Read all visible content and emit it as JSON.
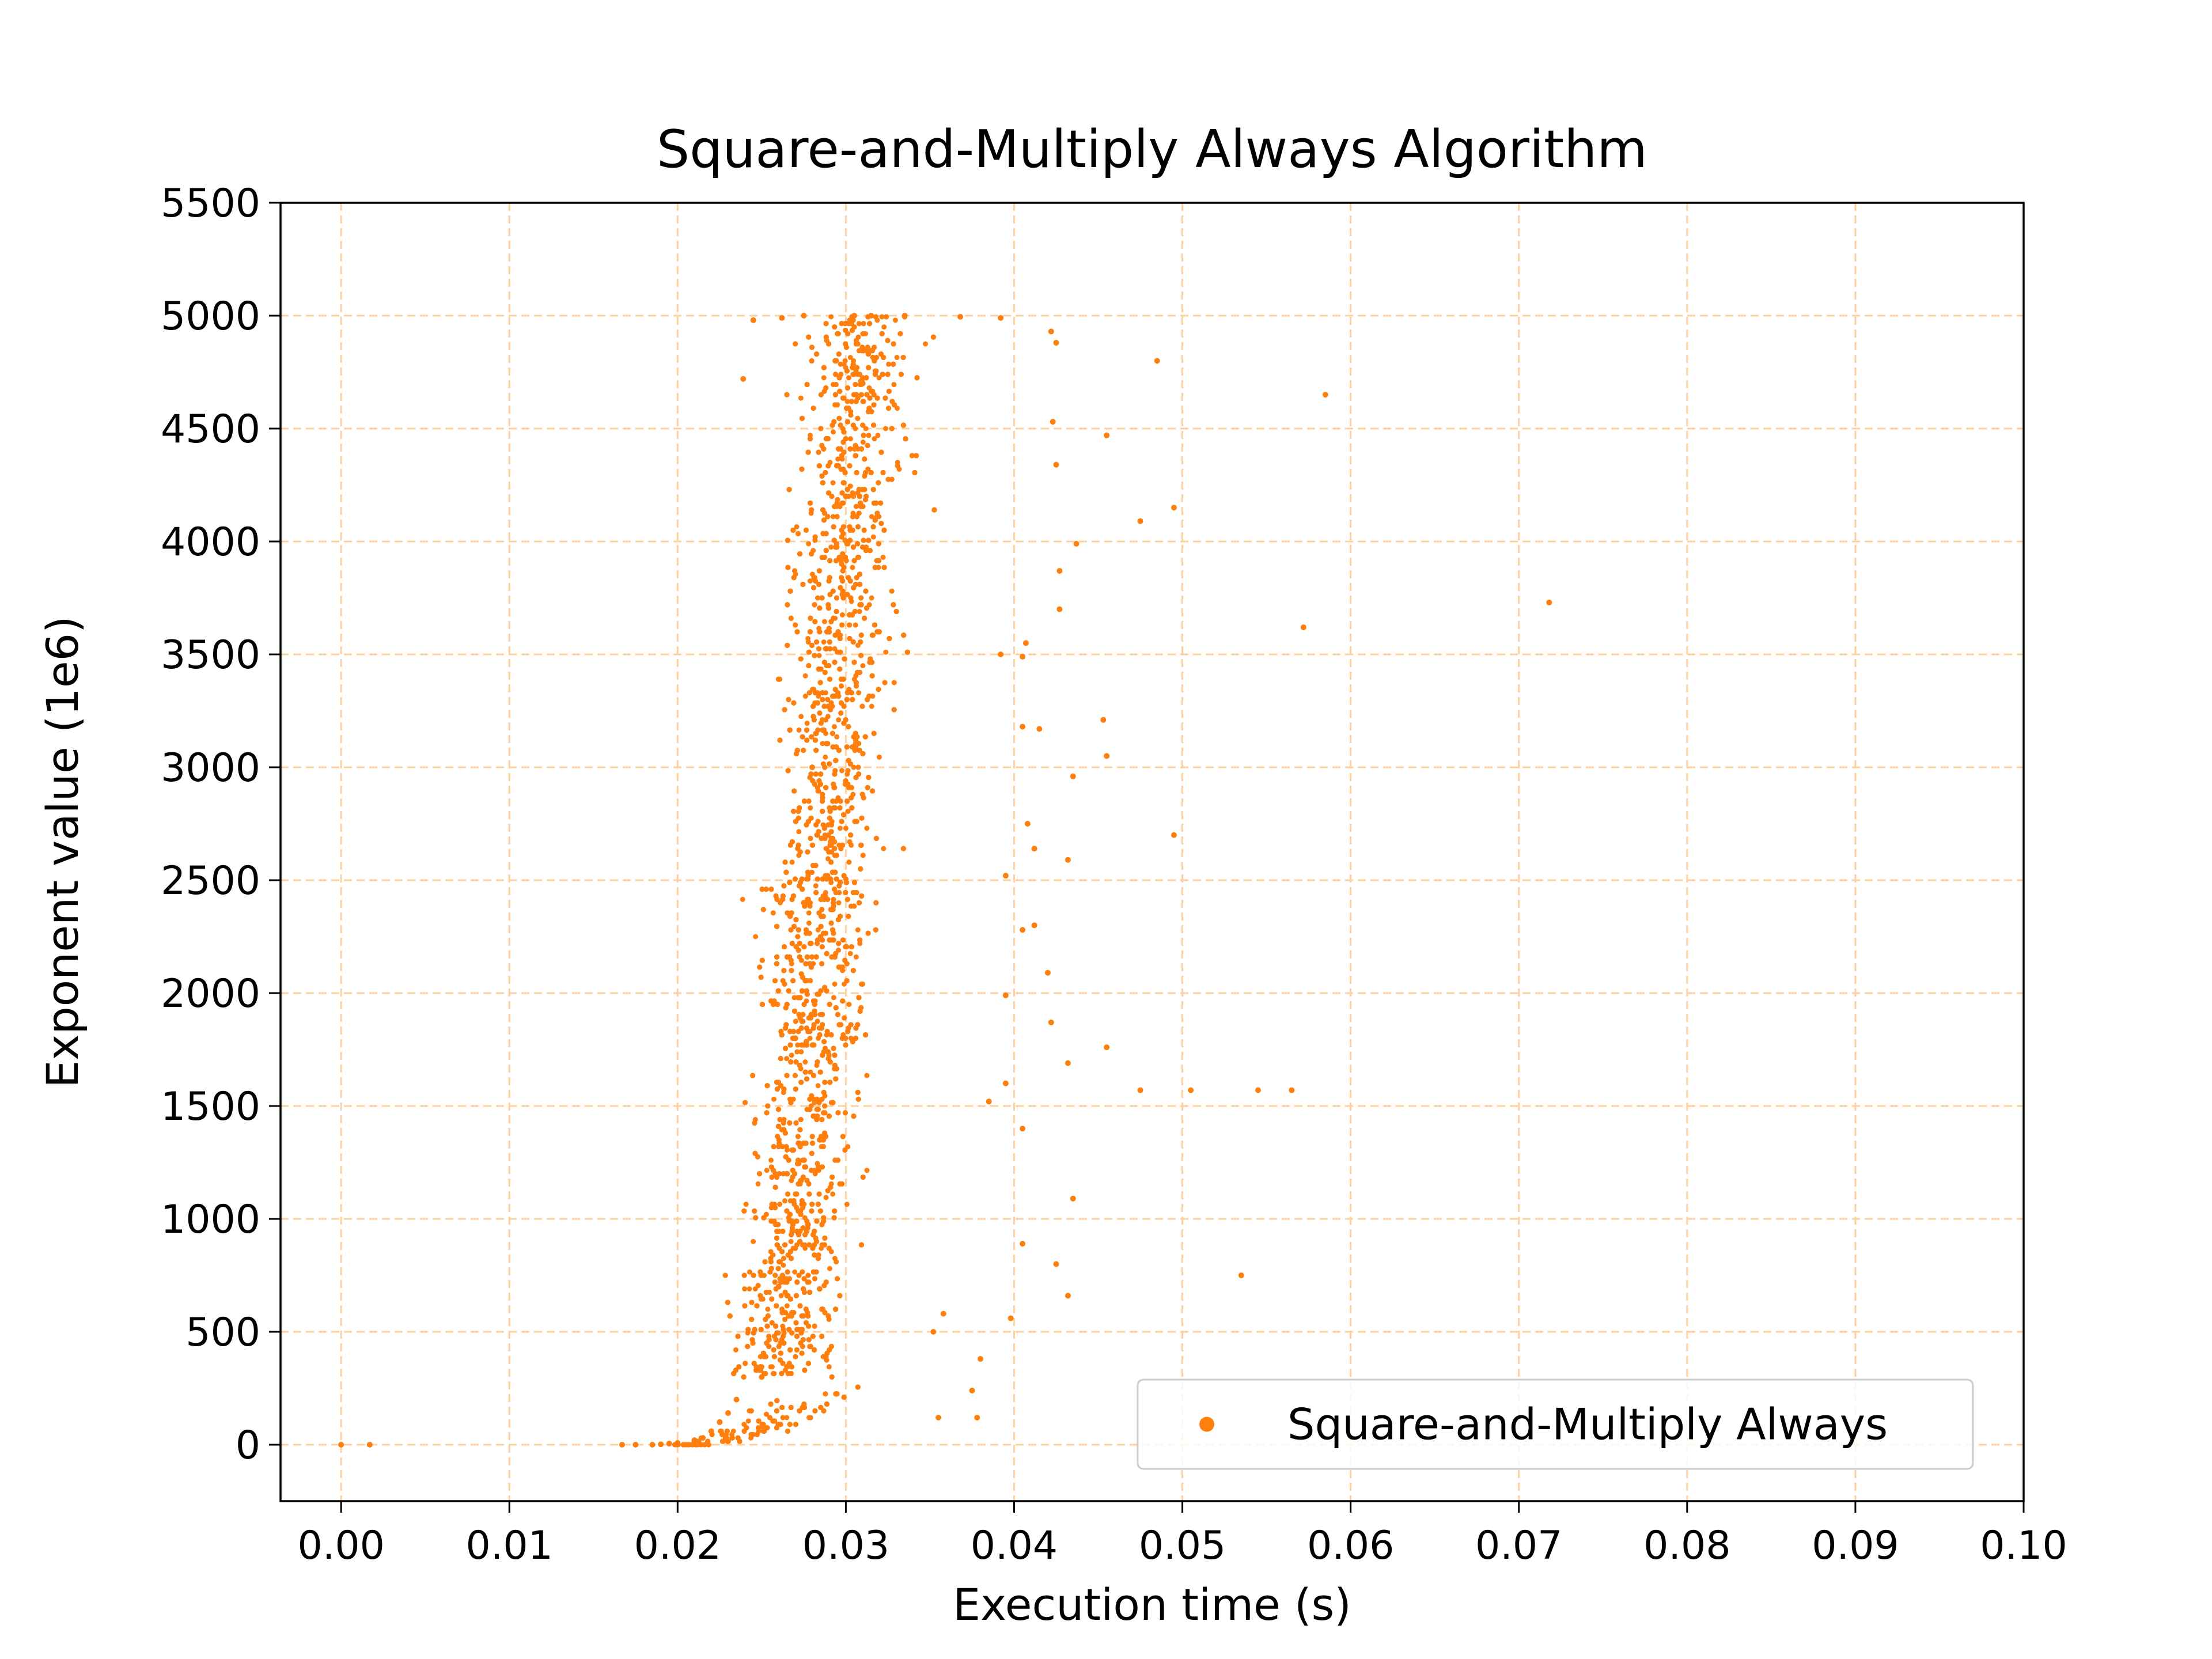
{
  "chart_data": {
    "type": "scatter",
    "title": "Square-and-Multiply Always Algorithm",
    "xlabel": "Execution time (s)",
    "ylabel": "Exponent value (1e6)",
    "xlim": [
      -0.0036,
      0.1
    ],
    "ylim": [
      -250,
      5500
    ],
    "x_ticks": [
      "0.00",
      "0.01",
      "0.02",
      "0.03",
      "0.04",
      "0.05",
      "0.06",
      "0.07",
      "0.08",
      "0.09",
      "0.10"
    ],
    "x_tick_values": [
      0,
      0.01,
      0.02,
      0.03,
      0.04,
      0.05,
      0.06,
      0.07,
      0.08,
      0.09,
      0.1
    ],
    "y_ticks": [
      "0",
      "500",
      "1000",
      "1500",
      "2000",
      "2500",
      "3000",
      "3500",
      "4000",
      "4500",
      "5000",
      "5500"
    ],
    "y_tick_values": [
      0,
      500,
      1000,
      1500,
      2000,
      2500,
      3000,
      3500,
      4000,
      4500,
      5000,
      5500
    ],
    "grid": true,
    "legend_position": "lower-right",
    "series": [
      {
        "name": "Square-and-Multiply Always",
        "color": "#ff7f0e",
        "marker": "point",
        "trend": "execution time rises from about 0.017 s at exponent 0 to about 0.031 s at exponent 5000, with a horizontal spread of roughly ±0.004 s",
        "points": [
          [
            0.0,
            0
          ],
          [
            0.0017,
            0
          ],
          [
            0.0167,
            0
          ],
          [
            0.0175,
            0
          ],
          [
            0.0185,
            0
          ],
          [
            0.019,
            2
          ],
          [
            0.0195,
            5
          ],
          [
            0.02,
            8
          ],
          [
            0.021,
            20
          ],
          [
            0.0215,
            30
          ],
          [
            0.022,
            60
          ],
          [
            0.0225,
            100
          ],
          [
            0.023,
            140
          ],
          [
            0.0235,
            200
          ],
          [
            0.0239,
            4720
          ],
          [
            0.0245,
            4980
          ],
          [
            0.0262,
            4990
          ],
          [
            0.0275,
            5000
          ],
          [
            0.0305,
            5000
          ],
          [
            0.0335,
            5000
          ],
          [
            0.0368,
            4995
          ],
          [
            0.0392,
            4990
          ],
          [
            0.0422,
            4930
          ],
          [
            0.0425,
            4880
          ],
          [
            0.0485,
            4800
          ],
          [
            0.0585,
            4650
          ],
          [
            0.0423,
            4530
          ],
          [
            0.0455,
            4470
          ],
          [
            0.0425,
            4340
          ],
          [
            0.0495,
            4150
          ],
          [
            0.0475,
            4090
          ],
          [
            0.0437,
            3990
          ],
          [
            0.0427,
            3870
          ],
          [
            0.0718,
            3730
          ],
          [
            0.0427,
            3700
          ],
          [
            0.0572,
            3620
          ],
          [
            0.0407,
            3550
          ],
          [
            0.0392,
            3500
          ],
          [
            0.0405,
            3490
          ],
          [
            0.0453,
            3210
          ],
          [
            0.0405,
            3180
          ],
          [
            0.0415,
            3170
          ],
          [
            0.0435,
            2960
          ],
          [
            0.0455,
            3050
          ],
          [
            0.0495,
            2700
          ],
          [
            0.0408,
            2750
          ],
          [
            0.0412,
            2640
          ],
          [
            0.0395,
            2520
          ],
          [
            0.0432,
            2590
          ],
          [
            0.0412,
            2300
          ],
          [
            0.0405,
            2280
          ],
          [
            0.042,
            2090
          ],
          [
            0.0395,
            1990
          ],
          [
            0.0422,
            1870
          ],
          [
            0.0455,
            1760
          ],
          [
            0.0432,
            1690
          ],
          [
            0.0475,
            1570
          ],
          [
            0.0505,
            1570
          ],
          [
            0.0545,
            1570
          ],
          [
            0.0565,
            1570
          ],
          [
            0.0395,
            1600
          ],
          [
            0.0385,
            1520
          ],
          [
            0.0405,
            1400
          ],
          [
            0.0435,
            1090
          ],
          [
            0.0405,
            890
          ],
          [
            0.0535,
            750
          ],
          [
            0.0425,
            800
          ],
          [
            0.0432,
            660
          ],
          [
            0.0398,
            560
          ],
          [
            0.0375,
            240
          ],
          [
            0.0378,
            120
          ],
          [
            0.038,
            380
          ],
          [
            0.0352,
            500
          ],
          [
            0.0355,
            120
          ],
          [
            0.0358,
            580
          ],
          [
            0.025,
            300
          ],
          [
            0.026,
            700
          ],
          [
            0.0265,
            1200
          ],
          [
            0.027,
            1800
          ],
          [
            0.0275,
            2400
          ],
          [
            0.028,
            3000
          ],
          [
            0.029,
            3600
          ],
          [
            0.03,
            4200
          ],
          [
            0.031,
            4700
          ],
          [
            0.0315,
            5000
          ]
        ]
      }
    ]
  }
}
